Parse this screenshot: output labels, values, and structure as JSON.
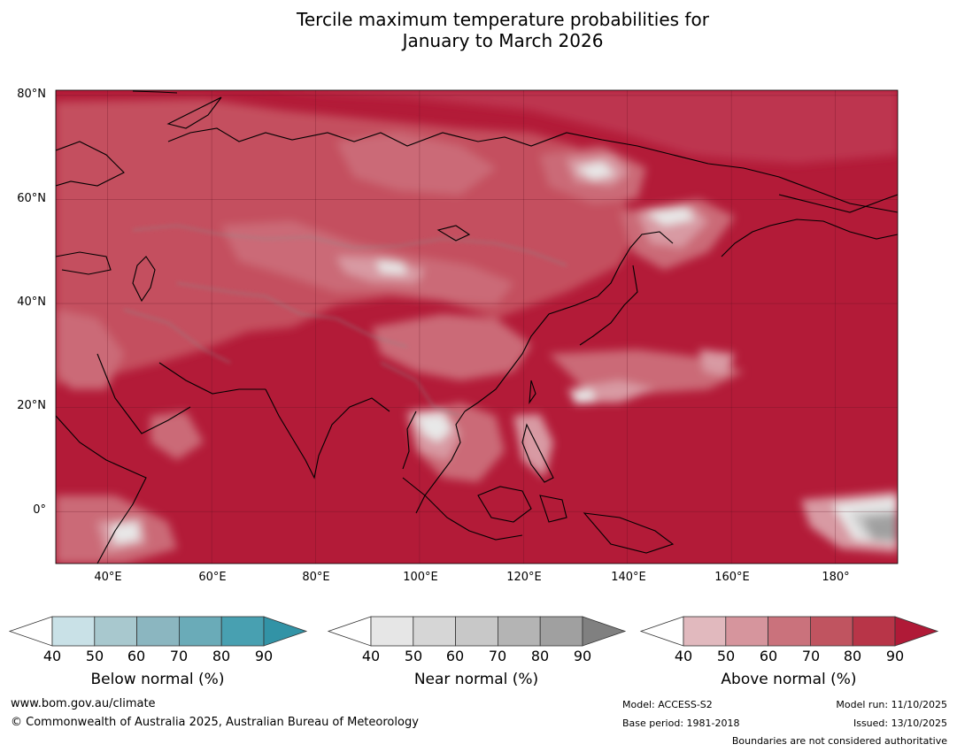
{
  "title": {
    "line1": "Tercile maximum temperature probabilities for",
    "line2": "January to March 2026"
  },
  "map": {
    "latitude_labels": [
      "80°N",
      "60°N",
      "40°N",
      "20°N",
      "0°"
    ],
    "longitude_labels": [
      "40°E",
      "60°E",
      "80°E",
      "100°E",
      "120°E",
      "140°E",
      "160°E",
      "180°"
    ],
    "extent": {
      "lon_min": 30,
      "lon_max": 192,
      "lat_min": -10,
      "lat_max": 81
    },
    "dominant_category": "Above normal",
    "colors": {
      "above_90": "#b31b38",
      "above_80": "#bd3650",
      "above_70": "#c4505f",
      "above_60": "#cb6b77",
      "above_50": "#d89aa3",
      "above_40": "#e4b9bf",
      "near_40": "#e8e8e8",
      "near_60": "#c9c9c9",
      "near_80": "#a0a0a0",
      "coastline": "#000000",
      "borders": "#8a8a8a"
    }
  },
  "colorbars": [
    {
      "label": "Below normal (%)",
      "ticks": [
        "40",
        "50",
        "60",
        "70",
        "80",
        "90"
      ],
      "colors": [
        "#c9e1e7",
        "#a8c8ce",
        "#8bb6c0",
        "#6aabb8",
        "#48a0b1",
        "#3293a6"
      ]
    },
    {
      "label": "Near normal (%)",
      "ticks": [
        "40",
        "50",
        "60",
        "70",
        "80",
        "90"
      ],
      "colors": [
        "#e6e6e6",
        "#d6d6d6",
        "#c8c8c8",
        "#b4b4b4",
        "#a0a0a0",
        "#808080"
      ]
    },
    {
      "label": "Above normal (%)",
      "ticks": [
        "40",
        "50",
        "60",
        "70",
        "80",
        "90"
      ],
      "colors": [
        "#e1b9be",
        "#d6959d",
        "#ca727c",
        "#c05460",
        "#b83548",
        "#b01a37"
      ]
    }
  ],
  "footer": {
    "website": "www.bom.gov.au/climate",
    "copyright": "© Commonwealth of Australia 2025, Australian Bureau of Meteorology",
    "model": "Model: ACCESS-S2",
    "base_period": "Base period: 1981-2018",
    "model_run": "Model run: 11/10/2025",
    "issued": "Issued: 13/10/2025",
    "disclaimer": "Boundaries are not considered authoritative"
  }
}
